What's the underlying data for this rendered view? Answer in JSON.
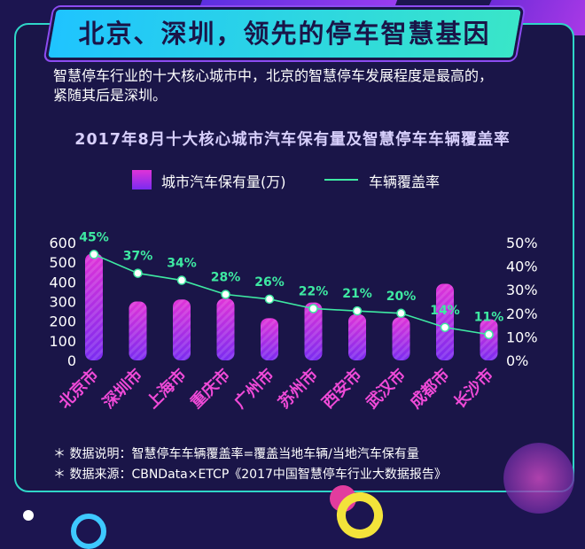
{
  "header": {
    "title": "北京、深圳，领先的停车智慧基因",
    "intro_lines": [
      "智慧停车行业的十大核心城市中，北京的智慧停车发展程度是最高的，",
      "紧随其后是深圳。"
    ]
  },
  "chart_data": {
    "type": "bar",
    "title": "2017年8月十大核心城市汽车保有量及智慧停车车辆覆盖率",
    "categories": [
      "北京市",
      "深圳市",
      "上海市",
      "重庆市",
      "广州市",
      "苏州市",
      "西安市",
      "武汉市",
      "成都市",
      "长沙市"
    ],
    "series": [
      {
        "name": "城市汽车保有量(万)",
        "type": "bar",
        "axis": "left",
        "values": [
          545,
          300,
          310,
          315,
          215,
          295,
          235,
          220,
          390,
          210
        ]
      },
      {
        "name": "车辆覆盖率",
        "type": "line",
        "axis": "right",
        "values": [
          45,
          37,
          34,
          28,
          26,
          22,
          21,
          20,
          14,
          11
        ],
        "labels": [
          "45%",
          "37%",
          "34%",
          "28%",
          "26%",
          "22%",
          "21%",
          "20%",
          "14%",
          "11%"
        ]
      }
    ],
    "y_left": {
      "ticks": [
        "0",
        "100",
        "200",
        "300",
        "400",
        "500",
        "600"
      ],
      "min": 0,
      "max": 600
    },
    "y_right": {
      "ticks": [
        "0%",
        "10%",
        "20%",
        "30%",
        "40%",
        "50%"
      ],
      "min": 0,
      "max": 50
    },
    "legend_position": "top"
  },
  "notes": {
    "line1": "＊ 数据说明：智慧停车车辆覆盖率=覆盖当地车辆/当地汽车保有量",
    "line2": "＊ 数据来源：CBNData×ETCP《2017中国智慧停车行业大数据报告》"
  },
  "colors": {
    "background": "#1c1550",
    "accent": "#2fd6c8",
    "bar_top": "#e033d8",
    "bar_bottom": "#7a2bf0",
    "line": "#3ee9a2",
    "title_text": "#1a1548"
  }
}
